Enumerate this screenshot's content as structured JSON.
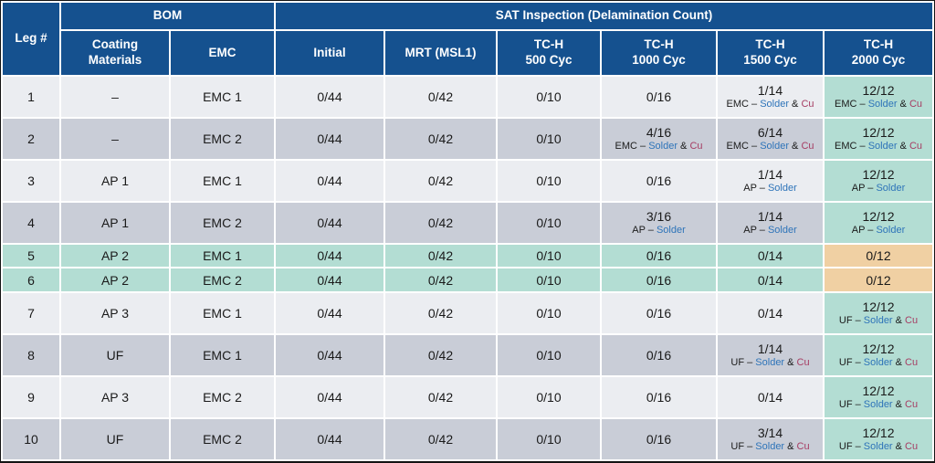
{
  "colors": {
    "header_blue": "#15518f",
    "row_light": "#ebedf1",
    "row_dark": "#c9cdd7",
    "teal_highlight": "#b3ddd3",
    "orange_highlight": "#f0d0a3",
    "solder_text": "#2e74b9",
    "cu_text": "#a63d63"
  },
  "table": {
    "header": {
      "leg": "Leg #",
      "bom": "BOM",
      "sat": "SAT Inspection (Delamination Count)",
      "sub_columns": [
        "Coating\nMaterials",
        "EMC",
        "Initial",
        "MRT (MSL1)",
        "TC-H\n500 Cyc",
        "TC-H\n1000 Cyc",
        "TC-H\n1500 Cyc",
        "TC-H\n2000 Cyc"
      ]
    },
    "rows": [
      {
        "leg": "1",
        "band": "light",
        "cells": [
          {
            "t": "–"
          },
          {
            "t": "EMC 1"
          },
          {
            "t": "0/44"
          },
          {
            "t": "0/42"
          },
          {
            "t": "0/10"
          },
          {
            "t": "0/16"
          },
          {
            "t": "1/14",
            "sub": [
              [
                "EMC – ",
                "d"
              ],
              [
                "Solder",
                "s"
              ],
              [
                " & ",
                "d"
              ],
              [
                "Cu",
                "c"
              ]
            ]
          },
          {
            "t": "12/12",
            "bg": "teal",
            "sub": [
              [
                "EMC – ",
                "d"
              ],
              [
                "Solder",
                "s"
              ],
              [
                " & ",
                "d"
              ],
              [
                "Cu",
                "c"
              ]
            ]
          }
        ]
      },
      {
        "leg": "2",
        "band": "dark",
        "cells": [
          {
            "t": "–"
          },
          {
            "t": "EMC 2"
          },
          {
            "t": "0/44"
          },
          {
            "t": "0/42"
          },
          {
            "t": "0/10"
          },
          {
            "t": "4/16",
            "sub": [
              [
                "EMC – ",
                "d"
              ],
              [
                "Solder",
                "s"
              ],
              [
                " & ",
                "d"
              ],
              [
                "Cu",
                "c"
              ]
            ]
          },
          {
            "t": "6/14",
            "sub": [
              [
                "EMC – ",
                "d"
              ],
              [
                "Solder",
                "s"
              ],
              [
                " & ",
                "d"
              ],
              [
                "Cu",
                "c"
              ]
            ]
          },
          {
            "t": "12/12",
            "bg": "teal",
            "sub": [
              [
                "EMC – ",
                "d"
              ],
              [
                "Solder",
                "s"
              ],
              [
                " & ",
                "d"
              ],
              [
                "Cu",
                "c"
              ]
            ]
          }
        ]
      },
      {
        "leg": "3",
        "band": "light",
        "cells": [
          {
            "t": "AP 1"
          },
          {
            "t": "EMC 1"
          },
          {
            "t": "0/44"
          },
          {
            "t": "0/42"
          },
          {
            "t": "0/10"
          },
          {
            "t": "0/16"
          },
          {
            "t": "1/14",
            "sub": [
              [
                "AP – ",
                "d"
              ],
              [
                "Solder",
                "s"
              ]
            ]
          },
          {
            "t": "12/12",
            "bg": "teal",
            "sub": [
              [
                "AP – ",
                "d"
              ],
              [
                "Solder",
                "s"
              ]
            ]
          }
        ]
      },
      {
        "leg": "4",
        "band": "dark",
        "cells": [
          {
            "t": "AP 1"
          },
          {
            "t": "EMC 2"
          },
          {
            "t": "0/44"
          },
          {
            "t": "0/42"
          },
          {
            "t": "0/10"
          },
          {
            "t": "3/16",
            "sub": [
              [
                "AP – ",
                "d"
              ],
              [
                "Solder",
                "s"
              ]
            ]
          },
          {
            "t": "1/14",
            "sub": [
              [
                "AP – ",
                "d"
              ],
              [
                "Solder",
                "s"
              ]
            ]
          },
          {
            "t": "12/12",
            "bg": "teal",
            "sub": [
              [
                "AP – ",
                "d"
              ],
              [
                "Solder",
                "s"
              ]
            ]
          }
        ]
      },
      {
        "leg": "5",
        "band": "teal",
        "cells": [
          {
            "t": "AP 2"
          },
          {
            "t": "EMC 1"
          },
          {
            "t": "0/44"
          },
          {
            "t": "0/42"
          },
          {
            "t": "0/10"
          },
          {
            "t": "0/16"
          },
          {
            "t": "0/14"
          },
          {
            "t": "0/12",
            "bg": "orange"
          }
        ]
      },
      {
        "leg": "6",
        "band": "teal",
        "cells": [
          {
            "t": "AP 2"
          },
          {
            "t": "EMC 2"
          },
          {
            "t": "0/44"
          },
          {
            "t": "0/42"
          },
          {
            "t": "0/10"
          },
          {
            "t": "0/16"
          },
          {
            "t": "0/14"
          },
          {
            "t": "0/12",
            "bg": "orange"
          }
        ]
      },
      {
        "leg": "7",
        "band": "light",
        "cells": [
          {
            "t": "AP 3"
          },
          {
            "t": "EMC 1"
          },
          {
            "t": "0/44"
          },
          {
            "t": "0/42"
          },
          {
            "t": "0/10"
          },
          {
            "t": "0/16"
          },
          {
            "t": "0/14"
          },
          {
            "t": "12/12",
            "bg": "teal",
            "sub": [
              [
                "UF – ",
                "d"
              ],
              [
                "Solder",
                "s"
              ],
              [
                " & ",
                "d"
              ],
              [
                "Cu",
                "c"
              ]
            ]
          }
        ]
      },
      {
        "leg": "8",
        "band": "dark",
        "cells": [
          {
            "t": "UF"
          },
          {
            "t": "EMC 1"
          },
          {
            "t": "0/44"
          },
          {
            "t": "0/42"
          },
          {
            "t": "0/10"
          },
          {
            "t": "0/16"
          },
          {
            "t": "1/14",
            "sub": [
              [
                "UF – ",
                "d"
              ],
              [
                "Solder",
                "s"
              ],
              [
                " & ",
                "d"
              ],
              [
                "Cu",
                "c"
              ]
            ]
          },
          {
            "t": "12/12",
            "bg": "teal",
            "sub": [
              [
                "UF – ",
                "d"
              ],
              [
                "Solder",
                "s"
              ],
              [
                " & ",
                "d"
              ],
              [
                "Cu",
                "c"
              ]
            ]
          }
        ]
      },
      {
        "leg": "9",
        "band": "light",
        "cells": [
          {
            "t": "AP 3"
          },
          {
            "t": "EMC 2"
          },
          {
            "t": "0/44"
          },
          {
            "t": "0/42"
          },
          {
            "t": "0/10"
          },
          {
            "t": "0/16"
          },
          {
            "t": "0/14"
          },
          {
            "t": "12/12",
            "bg": "teal",
            "sub": [
              [
                "UF – ",
                "d"
              ],
              [
                "Solder",
                "s"
              ],
              [
                " & ",
                "d"
              ],
              [
                "Cu",
                "c"
              ]
            ]
          }
        ]
      },
      {
        "leg": "10",
        "band": "dark",
        "cells": [
          {
            "t": "UF"
          },
          {
            "t": "EMC 2"
          },
          {
            "t": "0/44"
          },
          {
            "t": "0/42"
          },
          {
            "t": "0/10"
          },
          {
            "t": "0/16"
          },
          {
            "t": "3/14",
            "sub": [
              [
                "UF – ",
                "d"
              ],
              [
                "Solder",
                "s"
              ],
              [
                " & ",
                "d"
              ],
              [
                "Cu",
                "c"
              ]
            ]
          },
          {
            "t": "12/12",
            "bg": "teal",
            "sub": [
              [
                "UF – ",
                "d"
              ],
              [
                "Solder",
                "s"
              ],
              [
                " & ",
                "d"
              ],
              [
                "Cu",
                "c"
              ]
            ]
          }
        ]
      }
    ]
  }
}
